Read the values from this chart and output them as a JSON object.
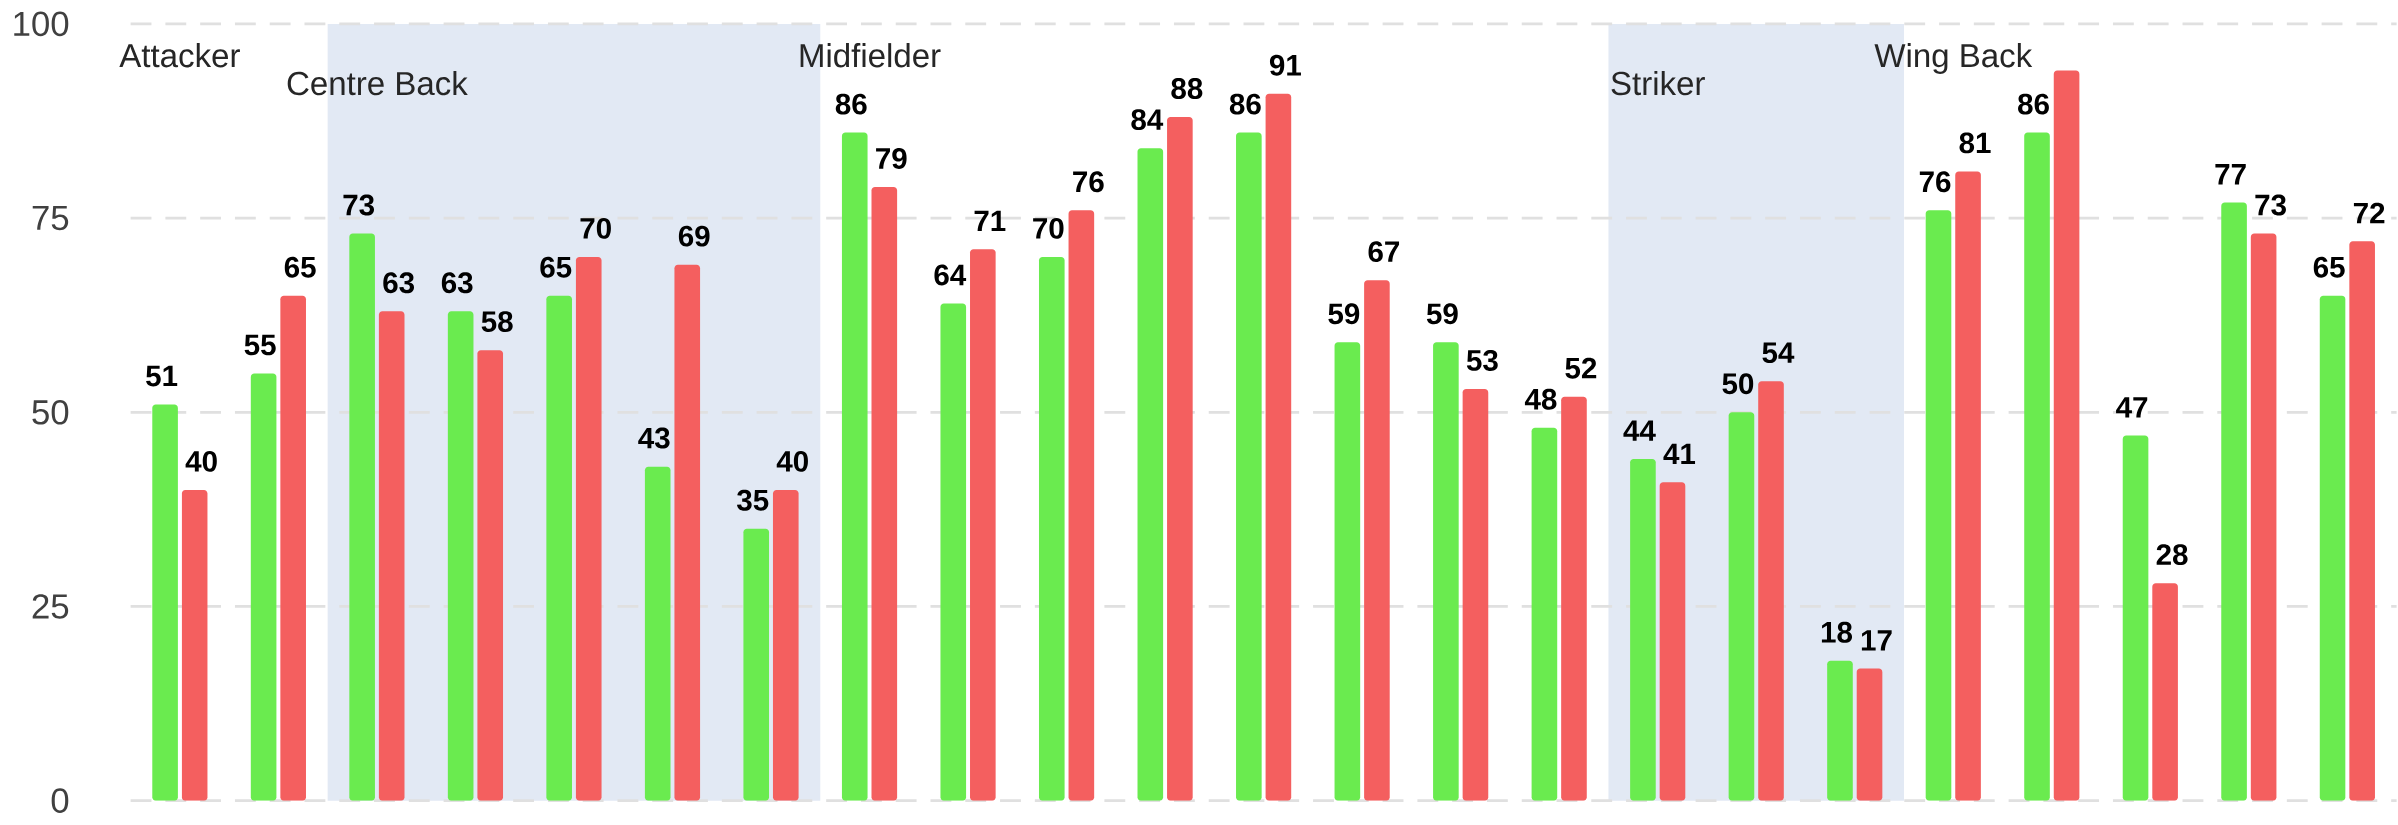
{
  "chart_data": {
    "type": "bar",
    "categories": [
      "Attacker",
      null,
      "Centre Back",
      null,
      null,
      null,
      null,
      "Midfielder",
      null,
      null,
      null,
      null,
      null,
      null,
      null,
      "Striker",
      null,
      null,
      "Wing Back",
      null,
      null,
      null,
      null
    ],
    "series": [
      {
        "color": "#6aeb4f",
        "values": [
          51,
          55,
          73,
          63,
          65,
          43,
          35,
          86,
          64,
          70,
          84,
          86,
          59,
          59,
          48,
          44,
          50,
          18,
          76,
          86,
          47,
          77,
          65
        ],
        "value_labels": [
          "51",
          "55",
          "73",
          "63",
          "65",
          "43",
          "35",
          "86",
          "64",
          "70",
          "84",
          "86",
          "59",
          "59",
          "48",
          "44",
          "50",
          "18",
          "76",
          "86",
          "47",
          "77",
          "65"
        ]
      },
      {
        "color": "#f45f5f",
        "values": [
          40,
          65,
          63,
          58,
          70,
          69,
          40,
          79,
          71,
          76,
          88,
          91,
          67,
          53,
          52,
          41,
          54,
          17,
          81,
          94,
          28,
          73,
          72
        ],
        "value_labels": [
          "40",
          "65",
          "63",
          "58",
          "70",
          "69",
          "40",
          "79",
          "71",
          "76",
          "88",
          "91",
          "67",
          "53",
          "52",
          "41",
          "54",
          "17",
          "81",
          null,
          "28",
          "73",
          "72"
        ]
      }
    ],
    "ylim": [
      0,
      100
    ],
    "yticks": [
      0,
      25,
      50,
      75,
      100
    ],
    "grid": "y"
  }
}
